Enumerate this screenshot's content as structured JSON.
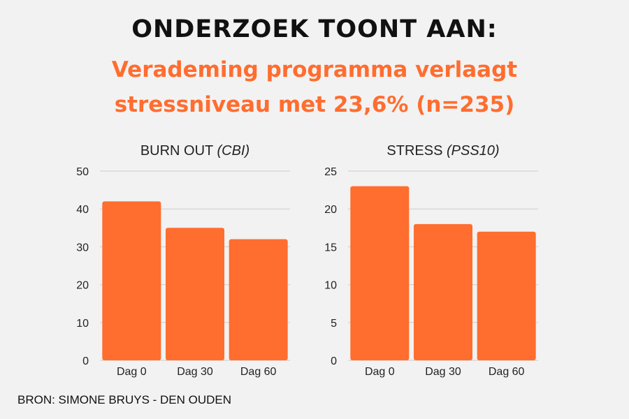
{
  "header": {
    "headline": "ONDERZOEK TOONT AAN:",
    "subline_1": "Verademing programma verlaagt",
    "subline_2": "stressniveau met 23,6%  (n=235)"
  },
  "colors": {
    "accent": "#ff6d2f",
    "bar": "#ff6d2f",
    "text": "#111111",
    "grid": "#cccccc",
    "background": "#f2f2f2"
  },
  "chart_data": [
    {
      "type": "bar",
      "title": "BURN OUT",
      "title_italic": "(CBI)",
      "categories": [
        "Dag 0",
        "Dag 30",
        "Dag 60"
      ],
      "values": [
        42,
        35,
        32
      ],
      "ylim": [
        0,
        50
      ],
      "yticks": [
        "0",
        "10",
        "20",
        "30",
        "40",
        "50"
      ],
      "grid": true
    },
    {
      "type": "bar",
      "title": "STRESS",
      "title_italic": "(PSS10)",
      "categories": [
        "Dag 0",
        "Dag 30",
        "Dag 60"
      ],
      "values": [
        23,
        18,
        17
      ],
      "ylim": [
        0,
        25
      ],
      "yticks": [
        "0",
        "5",
        "10",
        "15",
        "20",
        "25"
      ],
      "grid": true
    }
  ],
  "footer": {
    "source": "BRON: SIMONE BRUYS - DEN OUDEN"
  }
}
